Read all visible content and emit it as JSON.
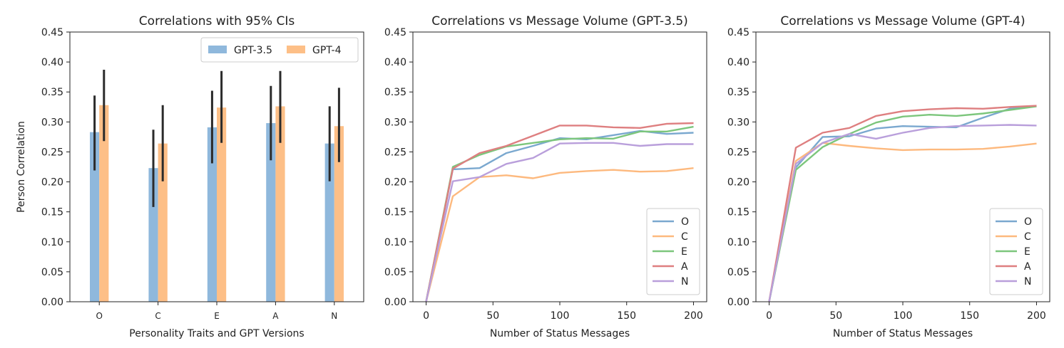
{
  "chart_data": [
    {
      "type": "bar",
      "title": "Correlations with 95% CIs",
      "xlabel": "Personality Traits and GPT Versions",
      "ylabel": "Person Correlation",
      "ylim": [
        0,
        0.45
      ],
      "yticks": [
        "0.00",
        "0.05",
        "0.10",
        "0.15",
        "0.20",
        "0.25",
        "0.30",
        "0.35",
        "0.40",
        "0.45"
      ],
      "categories": [
        "O",
        "C",
        "E",
        "A",
        "N"
      ],
      "legend": "top-right",
      "grid": false,
      "series": [
        {
          "name": "GPT-3.5",
          "color": "#8fb8dc",
          "values": [
            0.283,
            0.223,
            0.291,
            0.298,
            0.264
          ],
          "ci_low": [
            0.219,
            0.158,
            0.231,
            0.236,
            0.201
          ],
          "ci_high": [
            0.344,
            0.287,
            0.352,
            0.36,
            0.326
          ]
        },
        {
          "name": "GPT-4",
          "color": "#fdbf87",
          "values": [
            0.328,
            0.264,
            0.324,
            0.326,
            0.293
          ],
          "ci_low": [
            0.268,
            0.201,
            0.265,
            0.265,
            0.233
          ],
          "ci_high": [
            0.387,
            0.328,
            0.385,
            0.385,
            0.357
          ]
        }
      ]
    },
    {
      "type": "line",
      "title": "Correlations vs Message Volume (GPT-3.5)",
      "xlabel": "Number of Status Messages",
      "ylabel": "",
      "xlim": [
        0,
        200
      ],
      "ylim": [
        0,
        0.45
      ],
      "xticks": [
        "0",
        "50",
        "100",
        "150",
        "200"
      ],
      "yticks": [
        "0.00",
        "0.05",
        "0.10",
        "0.15",
        "0.20",
        "0.25",
        "0.30",
        "0.35",
        "0.40",
        "0.45"
      ],
      "legend": "bottom-right",
      "grid": false,
      "x": [
        0,
        20,
        40,
        60,
        80,
        100,
        120,
        140,
        160,
        180,
        200
      ],
      "series": [
        {
          "name": "O",
          "color": "#7aa8cf",
          "values": [
            0,
            0.221,
            0.223,
            0.248,
            0.26,
            0.273,
            0.271,
            0.278,
            0.285,
            0.28,
            0.282
          ]
        },
        {
          "name": "C",
          "color": "#fdb97e",
          "values": [
            0,
            0.176,
            0.208,
            0.211,
            0.206,
            0.215,
            0.218,
            0.22,
            0.217,
            0.218,
            0.223
          ]
        },
        {
          "name": "E",
          "color": "#7cc67c",
          "values": [
            0,
            0.225,
            0.245,
            0.259,
            0.265,
            0.271,
            0.273,
            0.272,
            0.284,
            0.284,
            0.292
          ]
        },
        {
          "name": "A",
          "color": "#de7f80",
          "values": [
            0,
            0.222,
            0.248,
            0.26,
            0.277,
            0.294,
            0.294,
            0.291,
            0.29,
            0.297,
            0.298
          ]
        },
        {
          "name": "N",
          "color": "#b99fdb",
          "values": [
            0,
            0.201,
            0.208,
            0.23,
            0.24,
            0.264,
            0.265,
            0.265,
            0.26,
            0.263,
            0.263
          ]
        }
      ]
    },
    {
      "type": "line",
      "title": "Correlations vs Message Volume (GPT-4)",
      "xlabel": "Number of Status Messages",
      "ylabel": "",
      "xlim": [
        0,
        200
      ],
      "ylim": [
        0,
        0.45
      ],
      "xticks": [
        "0",
        "50",
        "100",
        "150",
        "200"
      ],
      "yticks": [
        "0.00",
        "0.05",
        "0.10",
        "0.15",
        "0.20",
        "0.25",
        "0.30",
        "0.35",
        "0.40",
        "0.45"
      ],
      "legend": "bottom-right",
      "grid": false,
      "x": [
        0,
        20,
        40,
        60,
        80,
        100,
        120,
        140,
        160,
        180,
        200
      ],
      "series": [
        {
          "name": "O",
          "color": "#7aa8cf",
          "values": [
            0,
            0.224,
            0.275,
            0.276,
            0.289,
            0.293,
            0.292,
            0.291,
            0.307,
            0.322,
            0.327
          ]
        },
        {
          "name": "C",
          "color": "#fdb97e",
          "values": [
            0,
            0.235,
            0.265,
            0.26,
            0.256,
            0.253,
            0.254,
            0.254,
            0.255,
            0.259,
            0.264
          ]
        },
        {
          "name": "E",
          "color": "#7cc67c",
          "values": [
            0,
            0.22,
            0.258,
            0.28,
            0.299,
            0.309,
            0.312,
            0.31,
            0.314,
            0.32,
            0.326
          ]
        },
        {
          "name": "A",
          "color": "#de7f80",
          "values": [
            0,
            0.257,
            0.282,
            0.29,
            0.31,
            0.318,
            0.321,
            0.323,
            0.322,
            0.325,
            0.327
          ]
        },
        {
          "name": "N",
          "color": "#b99fdb",
          "values": [
            0,
            0.23,
            0.265,
            0.28,
            0.272,
            0.282,
            0.29,
            0.293,
            0.294,
            0.295,
            0.294
          ]
        }
      ]
    }
  ]
}
